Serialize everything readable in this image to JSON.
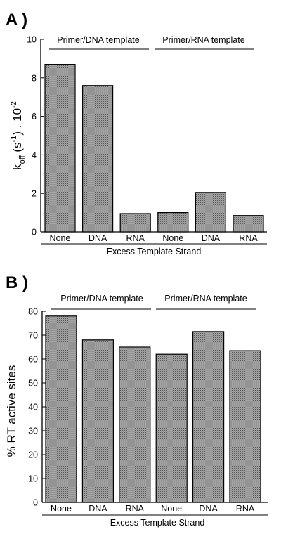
{
  "chart_data": [
    {
      "type": "bar",
      "panel_label": "A )",
      "categories": [
        "None",
        "DNA",
        "RNA",
        "None",
        "DNA",
        "RNA"
      ],
      "values": [
        8.7,
        7.6,
        0.95,
        1.0,
        2.05,
        0.85
      ],
      "ylim": [
        0,
        10
      ],
      "yticks": [
        "0",
        "2",
        "4",
        "6",
        "8",
        "10"
      ],
      "ylabel": "k_off (s⁻¹) . 10⁻²",
      "ylabel_parts": {
        "k": "k",
        "sub": "off",
        "mid": " (s",
        "sup1": "-1",
        "end": ") . 10",
        "sup2": "-2"
      },
      "xlabel": "Excess Template Strand",
      "groups": [
        {
          "label": "Primer/DNA template",
          "span": [
            0,
            2
          ]
        },
        {
          "label": "Primer/RNA template",
          "span": [
            3,
            5
          ]
        }
      ],
      "bar_fill": "#9a9a9a",
      "grid": false
    },
    {
      "type": "bar",
      "panel_label": "B )",
      "categories": [
        "None",
        "DNA",
        "RNA",
        "None",
        "DNA",
        "RNA"
      ],
      "values": [
        78,
        68,
        65,
        62,
        71.5,
        63.5
      ],
      "ylim": [
        0,
        80
      ],
      "yticks": [
        "0",
        "10",
        "20",
        "30",
        "40",
        "50",
        "60",
        "70",
        "80"
      ],
      "ylabel": "% RT active sites",
      "xlabel": "Excess Template Strand",
      "groups": [
        {
          "label": "Primer/DNA template",
          "span": [
            0,
            2
          ]
        },
        {
          "label": "Primer/RNA template",
          "span": [
            3,
            5
          ]
        }
      ],
      "bar_fill": "#9a9a9a",
      "grid": false
    }
  ]
}
